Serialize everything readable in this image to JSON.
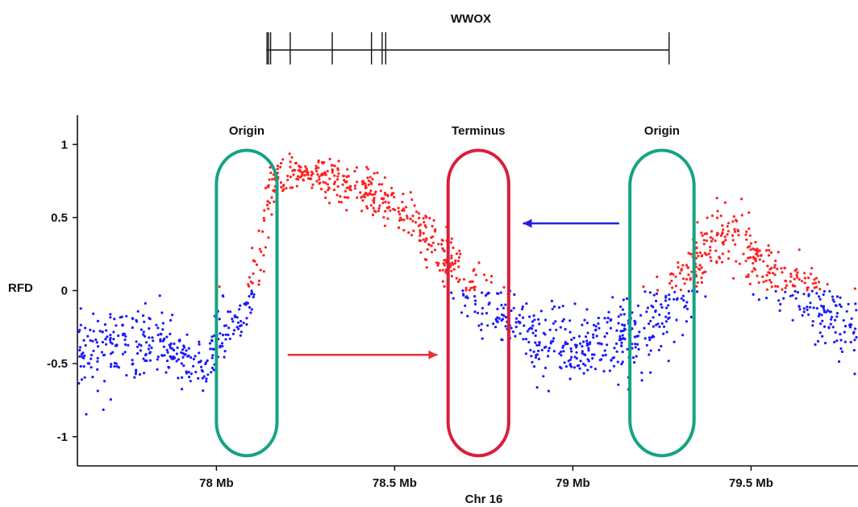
{
  "chart_data": {
    "type": "scatter",
    "gene": {
      "name": "WWOX",
      "span_mb": [
        78.14,
        79.27
      ],
      "exons_mb": [
        78.142,
        78.146,
        78.152,
        78.207,
        78.325,
        78.435,
        78.465,
        78.475,
        79.27
      ]
    },
    "xlabel": "Chr 16",
    "ylabel": "RFD",
    "xlim": [
      77.61,
      79.8
    ],
    "ylim": [
      -1.2,
      1.2
    ],
    "xticks": [
      {
        "value": 78.0,
        "label": "78 Mb"
      },
      {
        "value": 78.5,
        "label": "78.5 Mb"
      },
      {
        "value": 79.0,
        "label": "79 Mb"
      },
      {
        "value": 79.5,
        "label": "79.5 Mb"
      }
    ],
    "yticks": [
      {
        "value": 1,
        "label": "1"
      },
      {
        "value": 0.5,
        "label": "0.5"
      },
      {
        "value": 0,
        "label": "0"
      },
      {
        "value": -0.5,
        "label": "-0.5"
      },
      {
        "value": -1,
        "label": "-1"
      }
    ],
    "colors": {
      "positive": "#ff2020",
      "negative": "#1a1aff",
      "origin": "#15a383",
      "terminus": "#d91e3c",
      "arrow_right": "#e8313a",
      "arrow_left": "#2222dd",
      "axis": "#111111"
    },
    "regions": [
      {
        "label": "Origin",
        "type": "origin",
        "x_range": [
          78.0,
          78.17
        ]
      },
      {
        "label": "Terminus",
        "type": "terminus",
        "x_range": [
          78.65,
          78.82
        ]
      },
      {
        "label": "Origin",
        "type": "origin",
        "x_range": [
          79.16,
          79.34
        ]
      }
    ],
    "arrows": [
      {
        "direction": "right",
        "from": [
          78.2,
          -0.44
        ],
        "to": [
          78.62,
          -0.44
        ],
        "color": "arrow_right"
      },
      {
        "direction": "left",
        "from": [
          79.13,
          0.46
        ],
        "to": [
          78.86,
          0.46
        ],
        "color": "arrow_left"
      }
    ],
    "trend": [
      {
        "x": 77.61,
        "y": -0.4,
        "sd": 0.13
      },
      {
        "x": 77.7,
        "y": -0.38,
        "sd": 0.13
      },
      {
        "x": 77.8,
        "y": -0.35,
        "sd": 0.12
      },
      {
        "x": 77.9,
        "y": -0.45,
        "sd": 0.11
      },
      {
        "x": 77.98,
        "y": -0.55,
        "sd": 0.1
      },
      {
        "x": 78.0,
        "y": -0.3,
        "sd": 0.1
      },
      {
        "x": 78.07,
        "y": -0.18,
        "sd": 0.09
      },
      {
        "x": 78.11,
        "y": 0.05,
        "sd": 0.12
      },
      {
        "x": 78.14,
        "y": 0.5,
        "sd": 0.15
      },
      {
        "x": 78.17,
        "y": 0.78,
        "sd": 0.07
      },
      {
        "x": 78.25,
        "y": 0.8,
        "sd": 0.06
      },
      {
        "x": 78.35,
        "y": 0.74,
        "sd": 0.07
      },
      {
        "x": 78.45,
        "y": 0.63,
        "sd": 0.08
      },
      {
        "x": 78.55,
        "y": 0.47,
        "sd": 0.09
      },
      {
        "x": 78.62,
        "y": 0.28,
        "sd": 0.1
      },
      {
        "x": 78.68,
        "y": 0.12,
        "sd": 0.1
      },
      {
        "x": 78.73,
        "y": -0.05,
        "sd": 0.1
      },
      {
        "x": 78.8,
        "y": -0.15,
        "sd": 0.1
      },
      {
        "x": 78.9,
        "y": -0.35,
        "sd": 0.11
      },
      {
        "x": 79.0,
        "y": -0.38,
        "sd": 0.12
      },
      {
        "x": 79.1,
        "y": -0.33,
        "sd": 0.12
      },
      {
        "x": 79.2,
        "y": -0.28,
        "sd": 0.14
      },
      {
        "x": 79.28,
        "y": -0.12,
        "sd": 0.14
      },
      {
        "x": 79.34,
        "y": 0.15,
        "sd": 0.12
      },
      {
        "x": 79.4,
        "y": 0.38,
        "sd": 0.12
      },
      {
        "x": 79.47,
        "y": 0.33,
        "sd": 0.11
      },
      {
        "x": 79.55,
        "y": 0.15,
        "sd": 0.1
      },
      {
        "x": 79.62,
        "y": 0.0,
        "sd": 0.1
      },
      {
        "x": 79.7,
        "y": -0.1,
        "sd": 0.12
      },
      {
        "x": 79.8,
        "y": -0.3,
        "sd": 0.14
      }
    ],
    "approx_points": 1500,
    "legend": "none",
    "grid": false
  }
}
